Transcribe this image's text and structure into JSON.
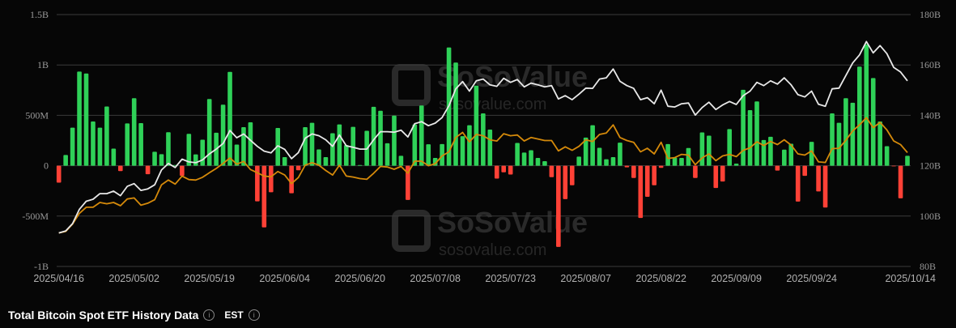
{
  "chart_data": {
    "type": "bar+line",
    "title": "Total Bitcoin Spot ETF History Data",
    "timezone": "EST",
    "watermark": "SoSoValue sosovalue.com",
    "grid": true,
    "colors": {
      "positive": "#2fd158",
      "negative": "#ff4136",
      "line_white": "#e8e8e8",
      "line_orange": "#d4890a",
      "background": "#060606"
    },
    "y_left": {
      "ticks": [
        "1.5B",
        "1B",
        "500M",
        "0",
        "-500M",
        "-1B"
      ],
      "ylim_millions": [
        -1000,
        1500
      ]
    },
    "y_right": {
      "ticks": [
        "180B",
        "160B",
        "140B",
        "120B",
        "100B",
        "80B"
      ],
      "ylim_billions": [
        80,
        180
      ]
    },
    "x_ticks": [
      {
        "index": 0,
        "label": "2025/04/16"
      },
      {
        "index": 11,
        "label": "2025/05/02"
      },
      {
        "index": 22,
        "label": "2025/05/19"
      },
      {
        "index": 33,
        "label": "2025/06/04"
      },
      {
        "index": 44,
        "label": "2025/06/20"
      },
      {
        "index": 55,
        "label": "2025/07/08"
      },
      {
        "index": 66,
        "label": "2025/07/23"
      },
      {
        "index": 77,
        "label": "2025/08/07"
      },
      {
        "index": 88,
        "label": "2025/08/22"
      },
      {
        "index": 99,
        "label": "2025/09/09"
      },
      {
        "index": 110,
        "label": "2025/09/24"
      },
      {
        "index": 124,
        "label": "2025/10/14"
      }
    ],
    "bars_millions": [
      -168,
      106,
      378,
      934,
      915,
      439,
      378,
      588,
      170,
      -53,
      420,
      670,
      423,
      -85,
      138,
      114,
      332,
      0,
      -101,
      316,
      112,
      258,
      662,
      327,
      606,
      931,
      210,
      383,
      431,
      -354,
      -612,
      -263,
      375,
      85,
      -274,
      -45,
      383,
      426,
      162,
      85,
      322,
      410,
      205,
      386,
      3,
      346,
      585,
      545,
      223,
      497,
      98,
      -340,
      410,
      598,
      213,
      77,
      215,
      1173,
      1024,
      293,
      402,
      795,
      519,
      359,
      -128,
      -66,
      -88,
      226,
      130,
      154,
      77,
      45,
      -114,
      -806,
      -332,
      -194,
      90,
      279,
      402,
      178,
      64,
      85,
      229,
      -16,
      -122,
      -519,
      -309,
      -194,
      -21,
      215,
      80,
      77,
      176,
      -122,
      330,
      298,
      -221,
      -157,
      364,
      21,
      753,
      551,
      638,
      255,
      287,
      -48,
      160,
      218,
      -356,
      -101,
      237,
      -255,
      -415,
      519,
      426,
      670,
      625,
      984,
      1205,
      870,
      439,
      194,
      -5,
      -324,
      98
    ],
    "series": [
      {
        "axis": "right",
        "values_billions": [
          93.3,
          94.1,
          97.0,
          102.7,
          105.9,
          106.7,
          108.9,
          108.9,
          109.9,
          108.1,
          111.8,
          112.9,
          110.2,
          110.8,
          112.4,
          118.3,
          120.9,
          119.3,
          122.6,
          121.5,
          121.2,
          122.3,
          124.7,
          126.6,
          128.8,
          134.0,
          131.1,
          132.6,
          130.1,
          127.7,
          125.8,
          125.1,
          127.9,
          126.5,
          122.8,
          125.2,
          130.9,
          132.6,
          131.9,
          130.3,
          127.7,
          132.2,
          127.9,
          127.3,
          126.6,
          126.6,
          130.3,
          133.5,
          133.5,
          133.3,
          134.1,
          131.4,
          136.7,
          137.5,
          135.9,
          136.9,
          139.1,
          143.8,
          150.5,
          153.4,
          149.6,
          153.7,
          154.4,
          152.1,
          151.5,
          154.7,
          153.1,
          154.2,
          151.3,
          152.8,
          152.1,
          151.3,
          151.8,
          146.5,
          147.8,
          146.2,
          148.4,
          150.8,
          150.7,
          154.4,
          154.9,
          158.4,
          153.5,
          151.8,
          150.7,
          146.2,
          147.0,
          144.6,
          150.0,
          143.6,
          143.3,
          144.6,
          144.9,
          140.1,
          143.1,
          145.2,
          142.3,
          144.1,
          145.5,
          144.3,
          147.8,
          149.6,
          153.1,
          151.8,
          153.7,
          152.4,
          154.9,
          152.1,
          148.2,
          147.3,
          149.6,
          144.4,
          143.6,
          150.5,
          150.8,
          155.8,
          160.8,
          164.0,
          169.3,
          164.8,
          167.7,
          164.5,
          159.0,
          157.2,
          153.7
        ]
      },
      {
        "axis": "right",
        "values_billions": [
          93.3,
          93.9,
          96.8,
          101.1,
          103.5,
          103.5,
          105.4,
          104.9,
          105.4,
          104.1,
          106.8,
          107.2,
          104.3,
          105.1,
          106.5,
          112.4,
          114.3,
          112.7,
          115.9,
          114.5,
          114.3,
          115.4,
          117.2,
          118.9,
          120.9,
          123.1,
          120.6,
          121.7,
          118.5,
          117.2,
          115.9,
          115.6,
          117.7,
          116.3,
          112.9,
          115.3,
          120.2,
          121.2,
          120.2,
          118.1,
          116.3,
          120.2,
          115.9,
          115.5,
          114.9,
          114.6,
          117.0,
          119.7,
          119.5,
          118.6,
          119.7,
          117.0,
          121.8,
          121.8,
          120.0,
          120.8,
          123.9,
          125.5,
          131.2,
          133.2,
          129.5,
          132.4,
          131.9,
          130.3,
          129.8,
          132.7,
          131.9,
          132.2,
          129.8,
          131.2,
          130.6,
          130.0,
          130.0,
          125.9,
          127.5,
          126.1,
          127.7,
          130.3,
          129.6,
          132.4,
          133.0,
          136.2,
          131.2,
          130.0,
          129.3,
          125.5,
          126.9,
          124.7,
          129.3,
          122.9,
          123.2,
          124.5,
          124.2,
          120.4,
          123.1,
          124.7,
          122.0,
          123.9,
          124.5,
          123.6,
          126.1,
          127.1,
          129.5,
          128.0,
          129.6,
          128.4,
          130.3,
          128.2,
          124.7,
          124.2,
          125.9,
          121.5,
          121.3,
          126.8,
          126.9,
          130.1,
          133.8,
          136.2,
          139.1,
          135.1,
          137.2,
          134.2,
          129.8,
          128.4,
          125.2
        ]
      }
    ]
  }
}
